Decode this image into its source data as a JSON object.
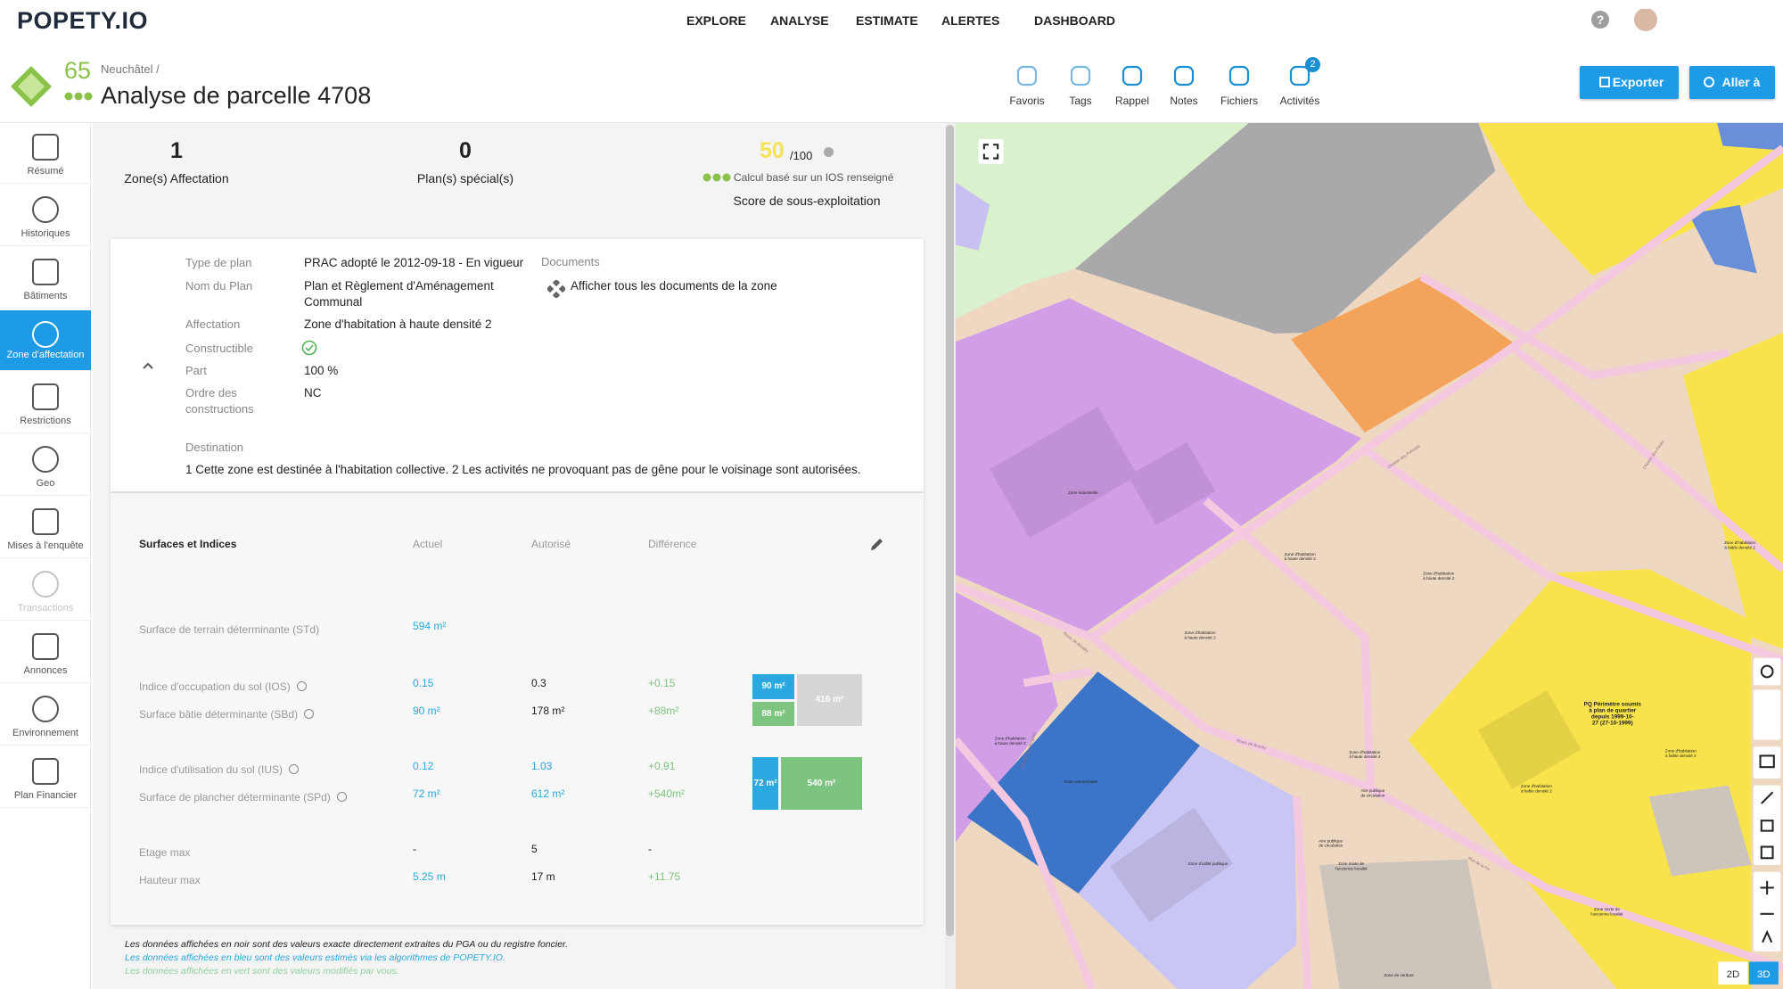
{
  "nav": {
    "logo": "POPETY.IO",
    "items": [
      "EXPLORE",
      "ANALYSE",
      "ESTIMATE",
      "ALERTES",
      "DASHBOARD"
    ]
  },
  "header": {
    "score": "65",
    "breadcrumb": "Neuchâtel /",
    "title": "Analyse de parcelle 4708"
  },
  "toolbar": {
    "items": [
      "Favoris",
      "Tags",
      "Rappel",
      "Notes",
      "Fichiers",
      "Activités"
    ],
    "badge": "2"
  },
  "buttons": [
    "Exporter",
    "Aller à"
  ],
  "sidebar": {
    "items": [
      "Résumé",
      "Historiques",
      "Bâtiments",
      "Zone d'affectation",
      "Restrictions",
      "Geo",
      "Mises à l'enquête",
      "Transactions",
      "Annonces",
      "Environnement",
      "Plan Financier"
    ],
    "active": 3,
    "disabled": [
      7
    ]
  },
  "summary": {
    "items": [
      {
        "value": "1",
        "label": "Zone(s) Affectation"
      },
      {
        "value": "0",
        "label": "Plan(s) spécial(s)"
      }
    ],
    "score": {
      "value": "50",
      "max": "/100",
      "note": "Calcul basé sur un IOS renseigné",
      "label": "Score de sous-exploitation"
    }
  },
  "plan": {
    "rows": [
      {
        "label": "Type de plan",
        "value": "PRAC adopté le 2012-09-18 - En vigueur"
      },
      {
        "label": "Nom du Plan",
        "value": "Plan et Règlement d'Aménagement Communal"
      },
      {
        "label": "Affectation",
        "value": "Zone d'habitation à haute densité 2"
      },
      {
        "label": "Constructible",
        "check": true
      },
      {
        "label": "Part",
        "value": "100 %"
      },
      {
        "label": "Ordre des constructions",
        "value": "NC"
      }
    ],
    "documents_title": "Documents",
    "documents_link": "Afficher tous les documents de la zone",
    "destination_label": "Destination",
    "destination": "1 Cette zone est destinée à l'habitation collective. 2 Les activités ne provoquant pas de gêne pour le voisinage sont autorisées."
  },
  "surfaces": {
    "title": "Surfaces et Indices",
    "columns": [
      "Actuel",
      "Autorisé",
      "Différence"
    ],
    "palette": {
      "blue": "#2aa8df",
      "black": "#222222",
      "green": "#7cc47f",
      "grey": "#d6d6d6"
    },
    "rows": [
      {
        "label": "Surface de terrain déterminante (STd)",
        "info": false,
        "cells": [
          {
            "text": "594 m²",
            "tone": "blue"
          },
          null,
          null
        ]
      },
      {
        "label": "Indice d'occupation du sol (IOS)",
        "info": true,
        "cells": [
          {
            "text": "0.15",
            "tone": "blue"
          },
          {
            "text": "0.3",
            "tone": "black"
          },
          {
            "text": "+0.15",
            "tone": "green"
          }
        ]
      },
      {
        "label": "Surface bâtie déterminante (SBd)",
        "info": true,
        "cells": [
          {
            "text": "90 m²",
            "tone": "blue"
          },
          {
            "text": "178 m²",
            "tone": "black"
          },
          {
            "text": "+88m²",
            "tone": "green"
          }
        ]
      },
      {
        "label": "Indice d'utilisation du sol (IUS)",
        "info": true,
        "cells": [
          {
            "text": "0.12",
            "tone": "blue"
          },
          {
            "text": "1.03",
            "tone": "blue"
          },
          {
            "text": "+0.91",
            "tone": "green"
          }
        ]
      },
      {
        "label": "Surface de plancher déterminante (SPd)",
        "info": true,
        "cells": [
          {
            "text": "72 m²",
            "tone": "blue"
          },
          {
            "text": "612 m²",
            "tone": "blue"
          },
          {
            "text": "+540m²",
            "tone": "green"
          }
        ]
      },
      {
        "label": "Etage max",
        "info": false,
        "cells": [
          {
            "text": "-",
            "tone": "black"
          },
          {
            "text": "5",
            "tone": "black"
          },
          {
            "text": "-",
            "tone": "black"
          }
        ]
      },
      {
        "label": "Hauteur max",
        "info": false,
        "cells": [
          {
            "text": "5.25 m",
            "tone": "blue"
          },
          {
            "text": "17 m",
            "tone": "black"
          },
          {
            "text": "+11.75",
            "tone": "green"
          }
        ]
      }
    ],
    "bars": [
      {
        "cells": [
          {
            "text": "90 m²",
            "tone": "blue"
          },
          {
            "text": "88 m²",
            "tone": "green"
          },
          {
            "text": "416 m²",
            "tone": "grey"
          }
        ]
      },
      {
        "cells": [
          {
            "text": "72 m²",
            "tone": "blue"
          },
          {
            "text": "540 m²",
            "tone": "green"
          }
        ]
      }
    ]
  },
  "footnotes": [
    {
      "text": "Les données affichées en noir sont des valeurs exacte directement extraites du PGA ou du registre foncier.",
      "tone": "black"
    },
    {
      "text": "Les données affichées en bleu sont des valeurs estimés via les algorithmes de POPETY.IO.",
      "tone": "blue"
    },
    {
      "text": "Les données affichées en vert sont des valeurs modifiés par vous.",
      "tone": "green"
    }
  ],
  "map": {
    "labels": [
      {
        "lines": [
          "Zone industrielle"
        ]
      },
      {
        "lines": [
          "Zone commerciale"
        ]
      },
      {
        "lines": [
          "Zone d'utilité publique"
        ]
      },
      {
        "lines": [
          "Zone d'habitation",
          "à haute densité 2"
        ]
      },
      {
        "lines": [
          "Zone d'habitation",
          "à haute densité 2"
        ]
      },
      {
        "lines": [
          "Zone d'habitation",
          "à haute densité 2"
        ]
      },
      {
        "lines": [
          "Zone d'habitation",
          "à haute densité 2"
        ]
      },
      {
        "lines": [
          "Zone d'habitation",
          "à haute densité 2"
        ]
      },
      {
        "lines": [
          "Zone d'habitation",
          "à faible densité 2"
        ]
      },
      {
        "lines": [
          "Zone d'habitation",
          "à faible densité 2"
        ]
      },
      {
        "lines": [
          "Zone d'habitation",
          "à faible densité 2"
        ]
      },
      {
        "lines": [
          "PQ Périmètre soumis",
          "à plan de quartier",
          "depuis 1999-10-",
          "27 (27-10-1999)"
        ]
      },
      {
        "lines": [
          "Aire publique",
          "de circulation"
        ]
      },
      {
        "lines": [
          "Aire publique",
          "de circulation"
        ]
      },
      {
        "lines": [
          "Zone mixte de",
          "l'ancienne localité"
        ]
      },
      {
        "lines": [
          "Zone mixte de",
          "l'ancienne localité"
        ]
      },
      {
        "lines": [
          "Zone de verdure"
        ]
      },
      {
        "lines": [
          "Route de Boudry"
        ]
      },
      {
        "lines": [
          "Route de Boudry"
        ]
      },
      {
        "lines": [
          "Rue de la Fin"
        ]
      },
      {
        "lines": [
          "Chemin des Murgiers"
        ]
      },
      {
        "lines": [
          "Chemin des Pavés"
        ]
      },
      {
        "lines": [
          "Chemin des Polonais"
        ]
      }
    ],
    "view": [
      "2D",
      "3D"
    ],
    "active_view": 1
  }
}
